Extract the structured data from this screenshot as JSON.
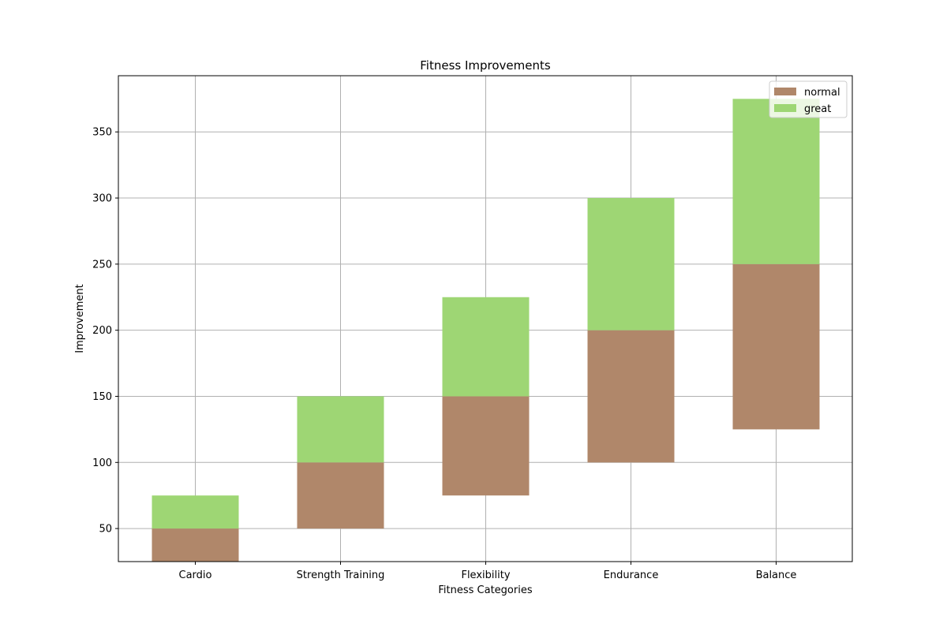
{
  "chart_data": {
    "type": "bar",
    "stacked": true,
    "title": "Fitness Improvements",
    "xlabel": "Fitness Categories",
    "ylabel": "Improvement",
    "categories": [
      "Cardio",
      "Strength Training",
      "Flexibility",
      "Endurance",
      "Balance"
    ],
    "series": [
      {
        "name": "normal",
        "color": "#b0876a",
        "base": [
          25,
          50,
          75,
          100,
          125
        ],
        "values": [
          25,
          50,
          75,
          100,
          125
        ]
      },
      {
        "name": "great",
        "color": "#9ed674",
        "values": [
          25,
          50,
          75,
          100,
          125
        ]
      }
    ],
    "ylim": [
      25,
      392.5
    ],
    "yticks": [
      50,
      100,
      150,
      200,
      250,
      300,
      350
    ],
    "grid": true,
    "legend_position": "top-right"
  }
}
